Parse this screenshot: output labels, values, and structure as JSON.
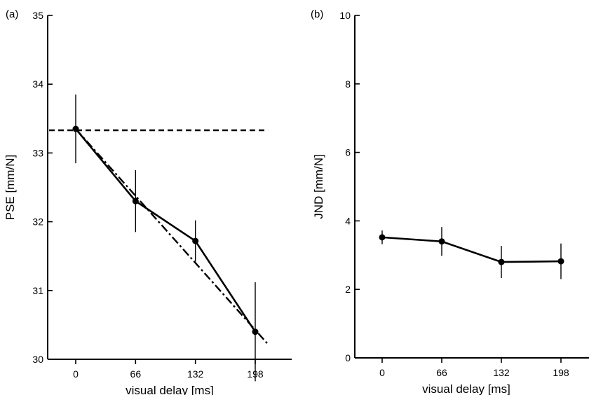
{
  "chart_data": [
    {
      "type": "line",
      "panel_label": "(a)",
      "xlabel": "visual delay [ms]",
      "ylabel": "PSE [mm/N]",
      "x": [
        0,
        66,
        132,
        198
      ],
      "x_tick_labels": [
        "0",
        "66",
        "132",
        "198"
      ],
      "xlim": [
        -40,
        220
      ],
      "ylim": [
        30,
        35
      ],
      "y_ticks": [
        30,
        31,
        32,
        33,
        34,
        35
      ],
      "series": [
        {
          "style": "solid-markers",
          "x": [
            0,
            66,
            132,
            198
          ],
          "values": [
            33.35,
            32.3,
            31.72,
            30.4
          ],
          "error": [
            0.5,
            0.45,
            0.3,
            0.72
          ]
        }
      ],
      "reference_lines": [
        {
          "style": "dashed",
          "y": 33.33,
          "x_range": [
            -40,
            212
          ]
        },
        {
          "style": "dash-dot",
          "points": [
            [
              0,
              33.35
            ],
            [
              212,
              30.22
            ]
          ]
        }
      ]
    },
    {
      "type": "line",
      "panel_label": "(b)",
      "xlabel": "visual delay [ms]",
      "ylabel": "JND [mm/N]",
      "x": [
        0,
        66,
        132,
        198
      ],
      "x_tick_labels": [
        "0",
        "66",
        "132",
        "198"
      ],
      "xlim": [
        -40,
        220
      ],
      "ylim": [
        0,
        10
      ],
      "y_ticks": [
        0,
        2,
        4,
        6,
        8,
        10
      ],
      "series": [
        {
          "style": "solid-markers",
          "x": [
            0,
            66,
            132,
            198
          ],
          "values": [
            3.52,
            3.4,
            2.8,
            2.82
          ],
          "error": [
            0.2,
            0.42,
            0.47,
            0.52
          ]
        }
      ]
    }
  ]
}
